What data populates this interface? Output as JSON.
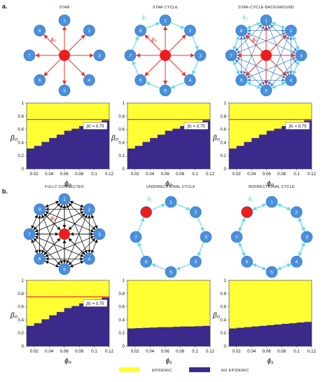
{
  "panels": {
    "a": {
      "label": "a.",
      "networks": [
        {
          "title": "STAR",
          "type": "star",
          "phi_label": "ϕ₀",
          "phi_edge_label": ""
        },
        {
          "title": "STAR CYCLE",
          "type": "star-cycle",
          "phi_label": "ϕ₀",
          "phi_edge_label": "ϕ₁"
        },
        {
          "title": "STAR-CYCLE-BACKGROUND",
          "type": "star-cycle-background",
          "phi_label": "ϕ₀",
          "phi_edge_label": "ϕ₂"
        }
      ]
    },
    "b": {
      "label": "b.",
      "networks": [
        {
          "title": "FULLY CONNECTED",
          "type": "fully-connected",
          "phi_label": "ϕ₀",
          "phi_edge_label": ""
        },
        {
          "title": "UNIDIRECTIONAL CYCLE",
          "type": "uni-cycle",
          "phi_label": "",
          "phi_edge_label": "ϕ₁"
        },
        {
          "title": "BIDIRECTIONAL CYCLE",
          "type": "bi-cycle",
          "phi_label": "",
          "phi_edge_label": "ϕ₁"
        }
      ]
    }
  },
  "chart_data": [
    {
      "type": "heatmap",
      "panel": "a",
      "xlabel": "ϕ₀",
      "ylabel": "β₀",
      "xlim": [
        0.01,
        0.12
      ],
      "ylim": [
        0,
        1
      ],
      "xticks": [
        "0.02",
        "0.04",
        "0.06",
        "0.08",
        "0.1",
        "0.12"
      ],
      "yticks": [
        "0",
        "0.2",
        "0.4",
        "0.6",
        "0.8",
        "1"
      ],
      "boundary_x": [
        0.01,
        0.02,
        0.03,
        0.04,
        0.05,
        0.06,
        0.07,
        0.08,
        0.09,
        0.1,
        0.11,
        0.12
      ],
      "boundary_y": [
        0.31,
        0.35,
        0.41,
        0.47,
        0.52,
        0.58,
        0.61,
        0.65,
        0.69,
        0.71,
        0.74,
        0.76
      ],
      "threshold": 0.75,
      "threshold_label": "βc = 0.75"
    },
    {
      "type": "heatmap",
      "panel": "a",
      "xlabel": "ϕ₀",
      "ylabel": "β₀",
      "xlim": [
        0.01,
        0.12
      ],
      "ylim": [
        0,
        1
      ],
      "xticks": [
        "0.02",
        "0.04",
        "0.06",
        "0.08",
        "0.1",
        "0.12"
      ],
      "yticks": [
        "0",
        "0.2",
        "0.4",
        "0.6",
        "0.8",
        "1"
      ],
      "boundary_x": [
        0.01,
        0.02,
        0.03,
        0.04,
        0.05,
        0.06,
        0.07,
        0.08,
        0.09,
        0.1,
        0.11,
        0.12
      ],
      "boundary_y": [
        0.31,
        0.35,
        0.41,
        0.47,
        0.52,
        0.58,
        0.61,
        0.65,
        0.69,
        0.71,
        0.74,
        0.76
      ],
      "threshold": 0.75,
      "threshold_label": "βc = 0.75"
    },
    {
      "type": "heatmap",
      "panel": "a",
      "xlabel": "ϕ₀",
      "ylabel": "β₀",
      "xlim": [
        0.01,
        0.12
      ],
      "ylim": [
        0,
        1
      ],
      "xticks": [
        "0.02",
        "0.04",
        "0.06",
        "0.08",
        "0.1",
        "0.12"
      ],
      "yticks": [
        "0",
        "0.2",
        "0.4",
        "0.6",
        "0.8",
        "1"
      ],
      "boundary_x": [
        0.01,
        0.02,
        0.03,
        0.04,
        0.05,
        0.06,
        0.07,
        0.08,
        0.09,
        0.1,
        0.11,
        0.12
      ],
      "boundary_y": [
        0.31,
        0.35,
        0.41,
        0.47,
        0.52,
        0.58,
        0.61,
        0.65,
        0.69,
        0.71,
        0.74,
        0.76
      ],
      "threshold": 0.75,
      "threshold_label": "βc = 0.75"
    },
    {
      "type": "heatmap",
      "panel": "b",
      "xlabel": "ϕ₀",
      "ylabel": "β₀",
      "xlim": [
        0.01,
        0.12
      ],
      "ylim": [
        0,
        1
      ],
      "xticks": [
        "0.02",
        "0.04",
        "0.06",
        "0.08",
        "0.1",
        "0.12"
      ],
      "yticks": [
        "0",
        "0.2",
        "0.4",
        "0.6",
        "0.8",
        "1"
      ],
      "boundary_x": [
        0.01,
        0.02,
        0.03,
        0.04,
        0.05,
        0.06,
        0.07,
        0.08,
        0.09,
        0.1,
        0.11,
        0.12
      ],
      "boundary_y": [
        0.31,
        0.35,
        0.41,
        0.47,
        0.52,
        0.58,
        0.61,
        0.65,
        0.69,
        0.71,
        0.74,
        0.76
      ],
      "threshold": 0.75,
      "threshold_label": "βc = 0.75"
    },
    {
      "type": "heatmap",
      "panel": "b",
      "xlabel": "ϕ₁",
      "ylabel": "",
      "xlim": [
        0.01,
        0.12
      ],
      "ylim": [
        0,
        1
      ],
      "xticks": [
        "0.02",
        "0.04",
        "0.06",
        "0.08",
        "0.1",
        "0.12"
      ],
      "yticks": [
        "0",
        "0.2",
        "0.4",
        "0.6",
        "0.8",
        "1"
      ],
      "boundary_x": [
        0.01,
        0.02,
        0.03,
        0.04,
        0.05,
        0.06,
        0.07,
        0.08,
        0.09,
        0.1,
        0.11,
        0.12
      ],
      "boundary_y": [
        0.27,
        0.275,
        0.28,
        0.285,
        0.29,
        0.29,
        0.295,
        0.3,
        0.3,
        0.305,
        0.31,
        0.32
      ]
    },
    {
      "type": "heatmap",
      "panel": "b",
      "xlabel": "ϕ₁",
      "ylabel": "β₀",
      "xlim": [
        0.01,
        0.12
      ],
      "ylim": [
        0,
        1
      ],
      "xticks": [
        "0.02",
        "0.04",
        "0.06",
        "0.08",
        "0.1",
        "0.12"
      ],
      "yticks": [
        "0",
        "0.2",
        "0.4",
        "0.6",
        "0.8",
        "1"
      ],
      "boundary_x": [
        0.01,
        0.02,
        0.03,
        0.04,
        0.05,
        0.06,
        0.07,
        0.08,
        0.09,
        0.1,
        0.11,
        0.12
      ],
      "boundary_y": [
        0.27,
        0.28,
        0.29,
        0.3,
        0.31,
        0.32,
        0.33,
        0.34,
        0.35,
        0.36,
        0.37,
        0.39
      ]
    }
  ],
  "legend": [
    {
      "label": "EPIDEMIC",
      "color": "#ffff33"
    },
    {
      "label": "NO EPIDEMIC",
      "color": "#3b2a8c"
    }
  ],
  "colors": {
    "epidemic": "#ffff33",
    "no_epidemic": "#3b2a8c",
    "threshold_line": "#e8342a",
    "node": "#4a8fdc",
    "hub": "#ee1c1c",
    "star_edge": "#e8342a",
    "cycle_edge": "#66d9ec",
    "background_edge": "#4d7fd0",
    "full_edge": "#111111"
  }
}
